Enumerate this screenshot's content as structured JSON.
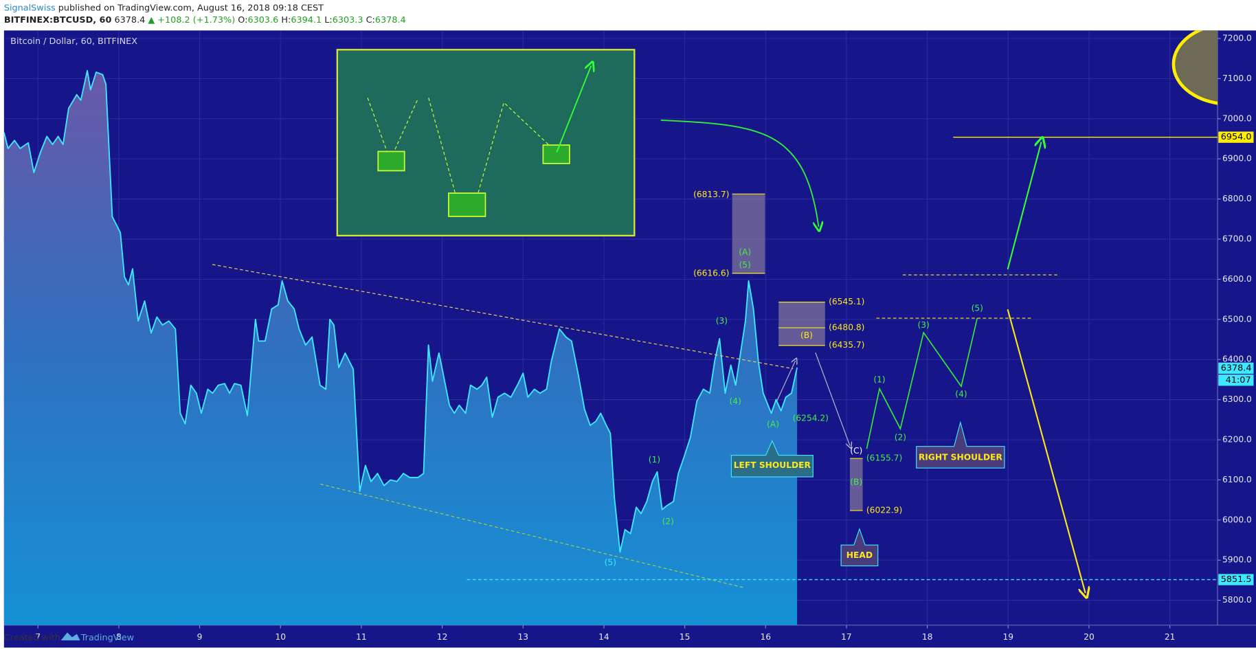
{
  "header": {
    "publisher": "SignalSwiss",
    "published": "published on TradingView.com, August 16, 2018 09:18 CEST",
    "symbol": "BITFINEX:BTCUSD, 60",
    "last": "6378.4",
    "change": "▲ +108.2 (+1.73%)",
    "ohlc": [
      [
        "O:",
        "6303.6"
      ],
      [
        "H:",
        "6394.1"
      ],
      [
        "L:",
        "6303.3"
      ],
      [
        "C:",
        "6378.4"
      ]
    ]
  },
  "footer": {
    "created": "Created with",
    "brand": "TradingView"
  },
  "chart_data": {
    "type": "line",
    "title": "Bitcoin / Dollar, 60, BITFINEX",
    "color": "#3ee8ff",
    "x": [
      6.58,
      6.63,
      6.71,
      6.78,
      6.88,
      6.95,
      7.03,
      7.11,
      7.18,
      7.25,
      7.31,
      7.38,
      7.48,
      7.53,
      7.61,
      7.65,
      7.72,
      7.8,
      7.84,
      7.92,
      8.02,
      8.07,
      8.12,
      8.17,
      8.24,
      8.32,
      8.4,
      8.47,
      8.54,
      8.62,
      8.7,
      8.76,
      8.82,
      8.89,
      8.96,
      9.02,
      9.1,
      9.16,
      9.23,
      9.31,
      9.37,
      9.43,
      9.51,
      9.59,
      9.69,
      9.73,
      9.81,
      9.89,
      9.97,
      10.02,
      10.09,
      10.17,
      10.23,
      10.31,
      10.39,
      10.49,
      10.56,
      10.61,
      10.66,
      10.72,
      10.8,
      10.9,
      10.98,
      11.05,
      11.12,
      11.2,
      11.28,
      11.36,
      11.44,
      11.52,
      11.6,
      11.7,
      11.77,
      11.83,
      11.88,
      11.96,
      12.01,
      12.09,
      12.15,
      12.21,
      12.29,
      12.35,
      12.43,
      12.49,
      12.55,
      12.62,
      12.69,
      12.77,
      12.85,
      12.94,
      13.0,
      13.06,
      13.14,
      13.21,
      13.29,
      13.35,
      13.45,
      13.53,
      13.6,
      13.68,
      13.76,
      13.83,
      13.9,
      13.96,
      14.03,
      14.08,
      14.13,
      14.2,
      14.26,
      14.33,
      14.4,
      14.46,
      14.53,
      14.6,
      14.66,
      14.72,
      14.78,
      14.86,
      14.92,
      14.99,
      15.07,
      15.15,
      15.23,
      15.31,
      15.37,
      15.43,
      15.5,
      15.57,
      15.63,
      15.69,
      15.75,
      15.79,
      15.85,
      15.91,
      15.97,
      16.03,
      16.07,
      16.13,
      16.19,
      16.25,
      16.32,
      16.39
    ],
    "values": [
      6966,
      6926,
      6946,
      6926,
      6940,
      6866,
      6916,
      6956,
      6936,
      6956,
      6936,
      7026,
      7060,
      7046,
      7120,
      7072,
      7116,
      7110,
      7086,
      6756,
      6716,
      6606,
      6586,
      6626,
      6496,
      6546,
      6466,
      6506,
      6486,
      6496,
      6476,
      6266,
      6240,
      6336,
      6316,
      6266,
      6326,
      6316,
      6336,
      6340,
      6316,
      6340,
      6336,
      6260,
      6500,
      6446,
      6446,
      6526,
      6536,
      6596,
      6546,
      6526,
      6476,
      6436,
      6456,
      6336,
      6326,
      6500,
      6486,
      6380,
      6416,
      6376,
      6072,
      6136,
      6096,
      6116,
      6086,
      6100,
      6096,
      6116,
      6106,
      6106,
      6116,
      6436,
      6346,
      6416,
      6366,
      6286,
      6266,
      6286,
      6266,
      6336,
      6326,
      6336,
      6356,
      6256,
      6306,
      6316,
      6306,
      6340,
      6366,
      6306,
      6326,
      6316,
      6326,
      6396,
      6476,
      6456,
      6446,
      6366,
      6276,
      6236,
      6246,
      6266,
      6236,
      6216,
      6056,
      5920,
      5976,
      5966,
      6032,
      6016,
      6046,
      6096,
      6120,
      6026,
      6036,
      6046,
      6116,
      6156,
      6206,
      6296,
      6326,
      6316,
      6396,
      6452,
      6316,
      6386,
      6336,
      6416,
      6496,
      6596,
      6526,
      6396,
      6316,
      6286,
      6266,
      6300,
      6272,
      6306,
      6316,
      6380
    ],
    "xlim": [
      6.58,
      21.59
    ],
    "xticks": [
      7,
      8,
      9,
      10,
      11,
      12,
      13,
      14,
      15,
      16,
      17,
      18,
      19,
      20,
      21
    ],
    "ylim": [
      5738,
      7220
    ],
    "yticks": [
      {
        "value": 5800,
        "label": "5800.0"
      },
      {
        "value": 5900,
        "label": "5900.0"
      },
      {
        "value": 6000,
        "label": "6000.0"
      },
      {
        "value": 6100,
        "label": "6100.0"
      },
      {
        "value": 6200,
        "label": "6200.0"
      },
      {
        "value": 6300,
        "label": "6300.0"
      },
      {
        "value": 6400,
        "label": "6400.0"
      },
      {
        "value": 6500,
        "label": "6500.0"
      },
      {
        "value": 6600,
        "label": "6600.0"
      },
      {
        "value": 6700,
        "label": "6700.0"
      },
      {
        "value": 6800,
        "label": "6800.0"
      },
      {
        "value": 6900,
        "label": "6900.0"
      },
      {
        "value": 7000,
        "label": "7000.0"
      },
      {
        "value": 7100,
        "label": "7100.0"
      },
      {
        "value": 7200,
        "label": "7200.0"
      }
    ],
    "grid": true,
    "price_labels": [
      {
        "value": 6954,
        "label": "6954.0"
      },
      {
        "value": 6378.4,
        "label": "6378.4"
      },
      {
        "value": 5851.5,
        "label": "5851.5"
      }
    ],
    "countdown": "41:07",
    "annotations": [
      "(6813.7)",
      "(6616.6)",
      "(A)",
      "(5)",
      "(6545.1)",
      "(6480.8)",
      "(B)",
      "(6435.7)",
      "(3)",
      "(4)",
      "(A)",
      "(6254.2)",
      "LEFT SHOULDER",
      "(1)",
      "(2)",
      "(5)",
      "(C)",
      "(6155.7)",
      "(B)",
      "(6022.9)",
      "HEAD",
      "(1)",
      "(2)",
      "(3)",
      "(4)",
      "(5)",
      "RIGHT SHOULDER"
    ]
  }
}
